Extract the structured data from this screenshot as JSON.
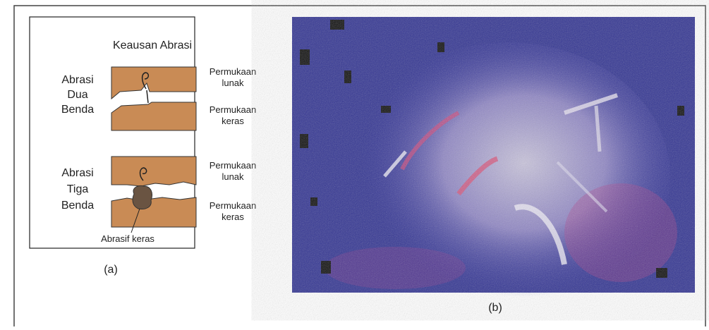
{
  "panel_a": {
    "title": "Keausan Abrasi",
    "two_body": {
      "label": [
        "Abrasi",
        "Dua",
        "Benda"
      ],
      "top_surface": [
        "Permukaan",
        "lunak"
      ],
      "bottom_surface": [
        "Permukaan",
        "keras"
      ]
    },
    "three_body": {
      "label": [
        "Abrasi",
        "Tiga",
        "Benda"
      ],
      "top_surface": [
        "Permukaan",
        "lunak"
      ],
      "bottom_surface": [
        "Permukaan",
        "keras"
      ]
    },
    "particle_label": "Abrasif keras",
    "caption": "(a)"
  },
  "panel_b": {
    "caption": "(b)"
  }
}
